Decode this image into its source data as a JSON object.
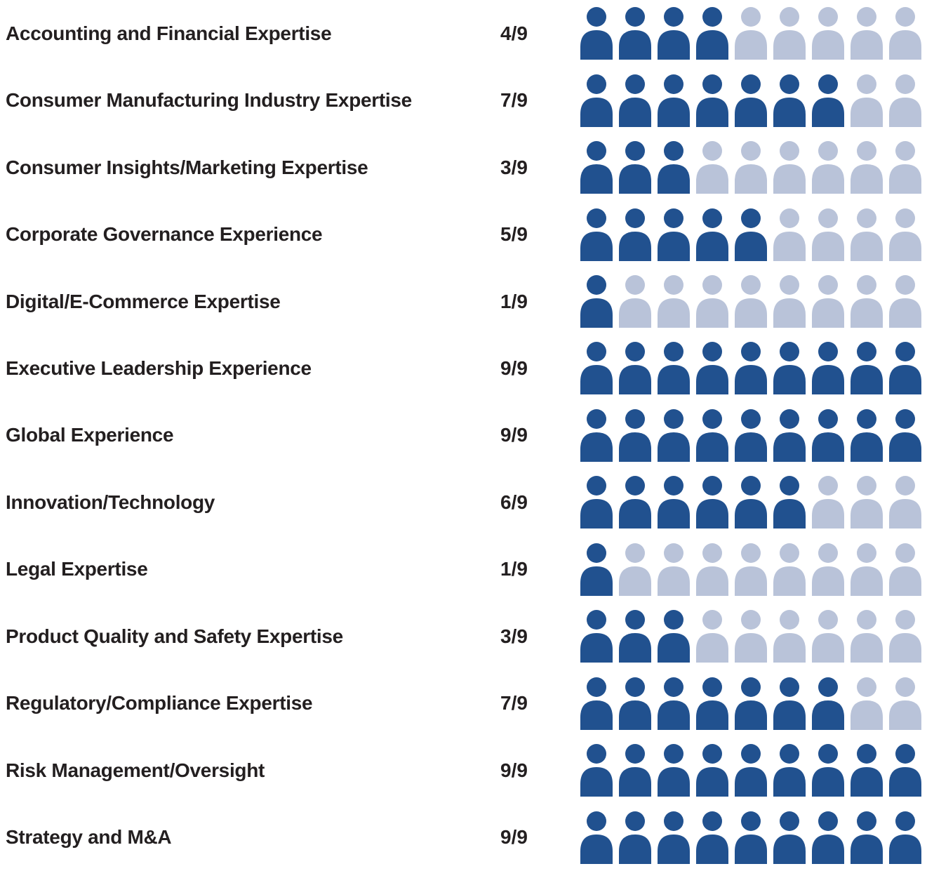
{
  "chart_data": {
    "type": "pictograph",
    "title": "",
    "unit": "director",
    "max_per_row": 9,
    "legend_position": "none",
    "colors": {
      "filled": "#21518f",
      "empty": "#b9c3d9",
      "text": "#231f20"
    },
    "rows": [
      {
        "label": "Accounting and Financial Expertise",
        "ratio": "4/9",
        "value": 4
      },
      {
        "label": "Consumer Manufacturing Industry Expertise",
        "ratio": "7/9",
        "value": 7
      },
      {
        "label": "Consumer Insights/Marketing Expertise",
        "ratio": "3/9",
        "value": 3
      },
      {
        "label": "Corporate Governance Experience",
        "ratio": "5/9",
        "value": 5
      },
      {
        "label": "Digital/E-Commerce Expertise",
        "ratio": "1/9",
        "value": 1
      },
      {
        "label": "Executive Leadership Experience",
        "ratio": "9/9",
        "value": 9
      },
      {
        "label": "Global Experience",
        "ratio": "9/9",
        "value": 9
      },
      {
        "label": "Innovation/Technology",
        "ratio": "6/9",
        "value": 6
      },
      {
        "label": "Legal Expertise",
        "ratio": "1/9",
        "value": 1
      },
      {
        "label": "Product Quality and Safety Expertise",
        "ratio": "3/9",
        "value": 3
      },
      {
        "label": "Regulatory/Compliance Expertise",
        "ratio": "7/9",
        "value": 7
      },
      {
        "label": "Risk Management/Oversight",
        "ratio": "9/9",
        "value": 9
      },
      {
        "label": "Strategy and M&A",
        "ratio": "9/9",
        "value": 9
      }
    ]
  }
}
